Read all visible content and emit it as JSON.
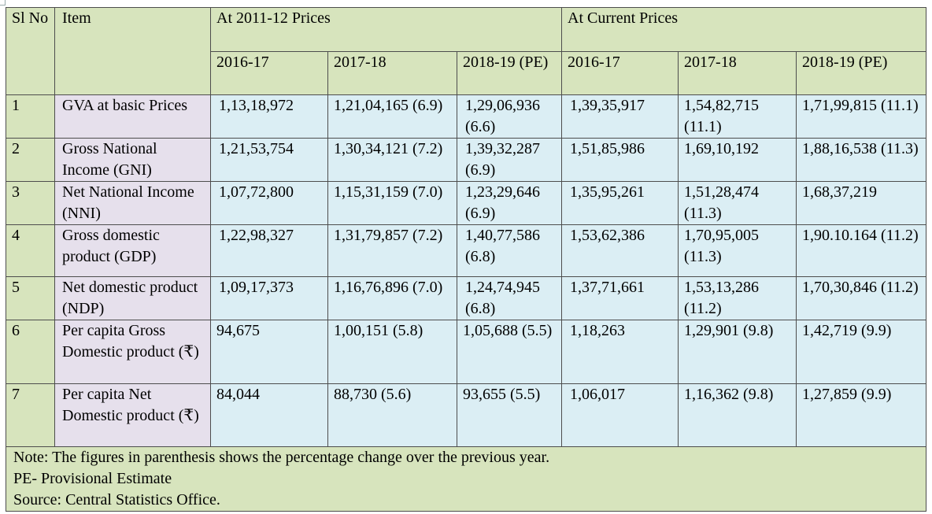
{
  "table": {
    "header": {
      "sl_no": "Sl No",
      "item": "Item",
      "group_constant": "At 2011-12 Prices",
      "group_current": "At Current Prices",
      "years": [
        "2016-17",
        "2017-18",
        "2018-19 (PE)",
        "2016-17",
        "2017-18",
        "2018-19 (PE)"
      ]
    },
    "rows": [
      {
        "sl": "1",
        "item": "GVA at basic Prices",
        "c1": "1,13,18,972",
        "c2": "1,21,04,165 (6.9)",
        "c3": "1,29,06,936 (6.6)",
        "c4": "1,39,35,917",
        "c5": "1,54,82,715 (11.1)",
        "c6": "1,71,99,815 (11.1)"
      },
      {
        "sl": "2",
        "item": "Gross National Income (GNI)",
        "c1": "1,21,53,754",
        "c2": "1,30,34,121 (7.2)",
        "c3": "1,39,32,287 (6.9)",
        "c4": "1,51,85,986",
        "c5": "1,69,10,192",
        "c6": "1,88,16,538 (11.3)"
      },
      {
        "sl": "3",
        "item": "Net National Income (NNI)",
        "c1": "1,07,72,800",
        "c2": "1,15,31,159 (7.0)",
        "c3": "1,23,29,646 (6.9)",
        "c4": "1,35,95,261",
        "c5": "1,51,28,474 (11.3)",
        "c6": "1,68,37,219"
      },
      {
        "sl": "4",
        "item": "Gross domestic product (GDP)",
        "c1": "1,22,98,327",
        "c2": "1,31,79,857 (7.2)",
        "c3": "1,40,77,586 (6.8)",
        "c4": "1,53,62,386",
        "c5": "1,70,95,005 (11.3)",
        "c6": "1,90.10.164 (11.2)"
      },
      {
        "sl": "5",
        "item": "Net domestic product (NDP)",
        "c1": "1,09,17,373",
        "c2": "1,16,76,896 (7.0)",
        "c3": "1,24,74,945 (6.8)",
        "c4": "1,37,71,661",
        "c5": "1,53,13,286 (11.2)",
        "c6": "1,70,30,846 (11.2)"
      },
      {
        "sl": "6",
        "item": "Per capita Gross Domestic product (₹)",
        "c1": "94,675",
        "c2": "1,00,151 (5.8)",
        "c3": "1,05,688 (5.5)",
        "c4": "1,18,263",
        "c5": "1,29,901 (9.8)",
        "c6": "1,42,719 (9.9)"
      },
      {
        "sl": "7",
        "item": "Per capita Net Domestic product (₹)",
        "c1": "84,044",
        "c2": "88,730 (5.6)",
        "c3": "93,655 (5.5)",
        "c4": "1,06,017",
        "c5": "1,16,362 (9.8)",
        "c6": "1,27,859 (9.9)"
      }
    ],
    "notes": [
      "Note: The figures in parenthesis shows the percentage change over the previous year.",
      "PE- Provisional Estimate",
      "Source: Central Statistics  Office."
    ]
  }
}
